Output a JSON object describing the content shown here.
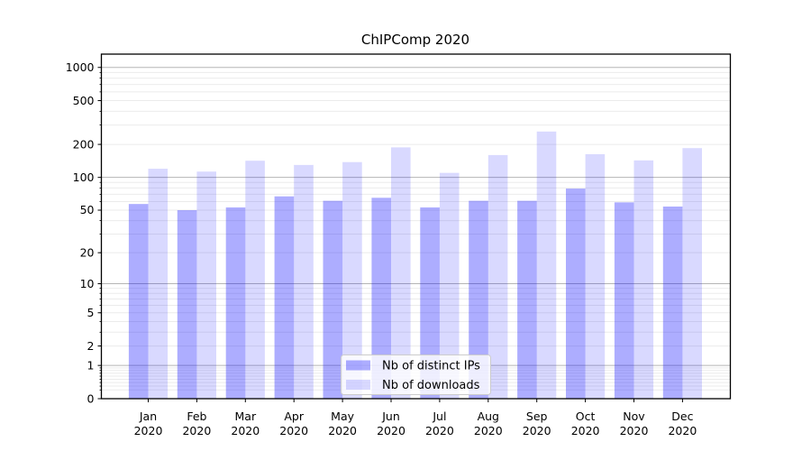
{
  "page": {
    "background": "#ffffff"
  },
  "chart_data": {
    "type": "bar",
    "title": "ChIPComp 2020",
    "months": [
      "Jan",
      "Feb",
      "Mar",
      "Apr",
      "May",
      "Jun",
      "Jul",
      "Aug",
      "Sep",
      "Oct",
      "Nov",
      "Dec"
    ],
    "year": "2020",
    "series": [
      {
        "name": "Nb of distinct IPs",
        "color": "rgba(0,0,255,0.32)",
        "values": [
          57,
          50,
          53,
          67,
          61,
          65,
          53,
          61,
          61,
          79,
          59,
          54
        ]
      },
      {
        "name": "Nb of downloads",
        "color": "rgba(0,0,255,0.15)",
        "values": [
          120,
          113,
          142,
          130,
          138,
          188,
          110,
          160,
          262,
          163,
          143,
          185
        ]
      }
    ],
    "y_axis": {
      "ticks": [
        0,
        1,
        2,
        5,
        10,
        20,
        50,
        100,
        200,
        500,
        1000
      ],
      "scale": "log10(1+v)",
      "range_top": 1320
    },
    "x_axis": {
      "label_line2": "2020"
    },
    "grid": {
      "show": true,
      "major_color": "#b5b5b5",
      "minor_color": "#ebebeb"
    },
    "axis_color": "#000000",
    "legend": {
      "position": "inside-bottom-center",
      "background": "rgba(255,255,255,0.8)",
      "border_color": "#cccccc"
    }
  }
}
